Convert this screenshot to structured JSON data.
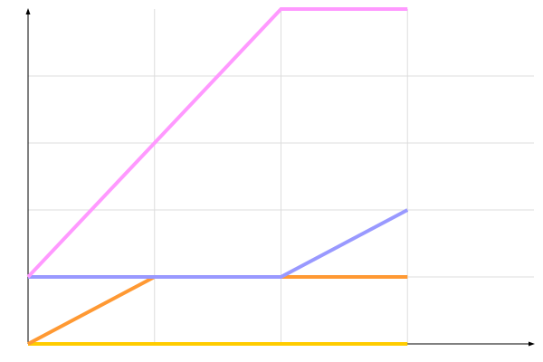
{
  "chart_data": {
    "type": "line",
    "title": "",
    "xlabel": "",
    "ylabel": "",
    "xlim": [
      0,
      4
    ],
    "ylim": [
      0,
      5
    ],
    "grid": true,
    "legend": "none",
    "series": [
      {
        "color": "#ffcc00",
        "x": [
          0,
          3
        ],
        "y": [
          0,
          0
        ]
      },
      {
        "color": "#ff9933",
        "x": [
          0,
          1,
          3
        ],
        "y": [
          0,
          1,
          1
        ]
      },
      {
        "color": "#9999ff",
        "x": [
          0,
          2,
          3
        ],
        "y": [
          1,
          1,
          2
        ]
      },
      {
        "color": "#ff99ff",
        "x": [
          0,
          2,
          3
        ],
        "y": [
          1,
          5,
          5
        ]
      }
    ]
  }
}
